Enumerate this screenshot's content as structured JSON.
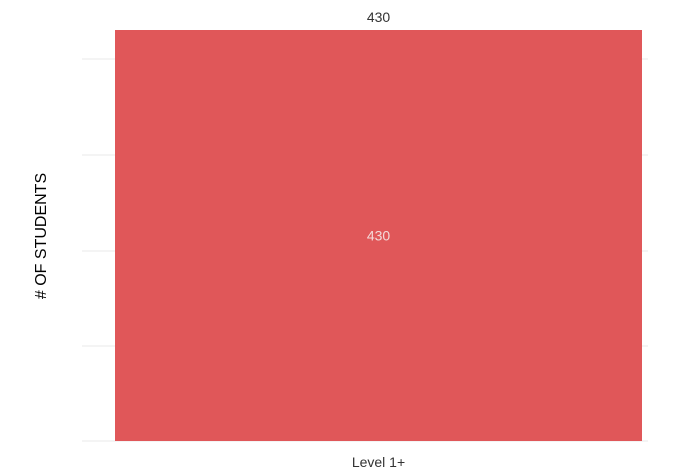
{
  "chart_data": {
    "type": "bar",
    "categories": [
      "Level 1+"
    ],
    "values": [
      430
    ],
    "value_label_outside": "430",
    "value_label_inside": "430",
    "ylabel": "# OF STUDENTS",
    "xlabel": "",
    "ylim": [
      0,
      430
    ],
    "grid": true,
    "gridline_count": 5,
    "colors": {
      "bar": "#e05759",
      "grid": "#e9e9e9",
      "text": "#333333",
      "inside_text": "#f3d9d9"
    }
  }
}
